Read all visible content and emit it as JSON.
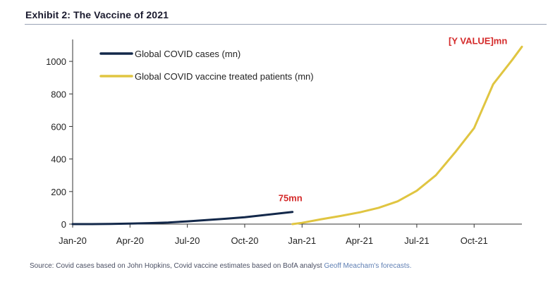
{
  "header": {
    "title": "Exhibit 2: The Vaccine of 2021"
  },
  "footer": {
    "source_text": "Source: Covid cases based on John Hopkins, Covid vaccine estimates based on BofA analyst ",
    "source_link": "Geoff Meacham's forecasts."
  },
  "colors": {
    "cases": "#13284a",
    "vaccine": "#e0c541",
    "annotation": "#d42a2a",
    "axis": "#333333"
  },
  "chart_data": {
    "type": "line",
    "title": "Exhibit 2: The Vaccine of 2021",
    "xlabel": "",
    "ylabel": "",
    "x_tick_labels": [
      "Jan-20",
      "Apr-20",
      "Jul-20",
      "Oct-20",
      "Jan-21",
      "Apr-21",
      "Jul-21",
      "Oct-21"
    ],
    "x_tick_months": [
      0,
      3,
      6,
      9,
      12,
      15,
      18,
      21
    ],
    "xlim_months": [
      0,
      23.5
    ],
    "ylim": [
      0,
      1100
    ],
    "y_ticks": [
      0,
      200,
      400,
      600,
      800,
      1000
    ],
    "grid": false,
    "legend_position": "top-left",
    "series": [
      {
        "name": "Global COVID cases (mn)",
        "color": "#13284a",
        "points": [
          [
            0,
            0
          ],
          [
            1,
            0.1
          ],
          [
            2,
            1
          ],
          [
            3,
            3
          ],
          [
            4,
            6
          ],
          [
            5,
            10
          ],
          [
            6,
            17
          ],
          [
            7,
            25
          ],
          [
            8,
            33
          ],
          [
            9,
            42
          ],
          [
            10,
            55
          ],
          [
            11,
            68
          ],
          [
            11.5,
            75
          ]
        ],
        "end_label": "75mn"
      },
      {
        "name": "Global COVID vaccine treated patients (mn)",
        "color": "#e0c541",
        "points": [
          [
            11.5,
            0
          ],
          [
            12,
            8
          ],
          [
            13,
            30
          ],
          [
            14,
            50
          ],
          [
            15,
            72
          ],
          [
            16,
            100
          ],
          [
            17,
            140
          ],
          [
            18,
            205
          ],
          [
            19,
            300
          ],
          [
            20,
            440
          ],
          [
            21,
            590
          ],
          [
            22,
            860
          ],
          [
            23,
            1010
          ],
          [
            23.5,
            1090
          ]
        ],
        "end_label": "[Y VALUE]mn"
      }
    ]
  }
}
